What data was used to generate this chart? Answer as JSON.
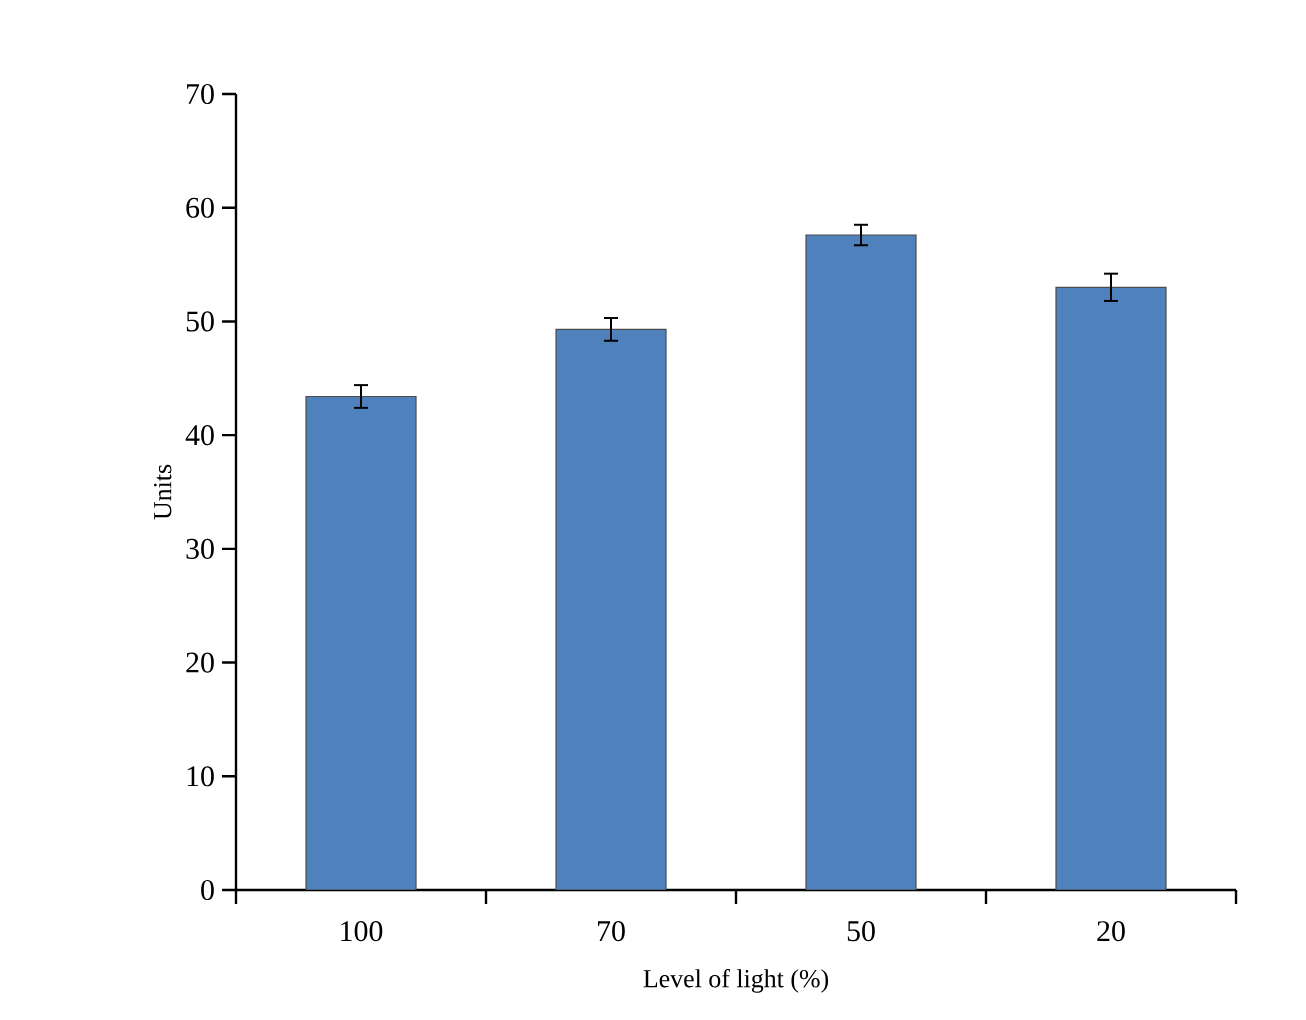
{
  "chart_data": {
    "type": "bar",
    "xlabel": "Level of light (%)",
    "ylabel": "Units",
    "categories": [
      "100",
      "70",
      "50",
      "20"
    ],
    "values": [
      43.4,
      49.3,
      57.6,
      53.0
    ],
    "errors": [
      1.0,
      1.0,
      0.9,
      1.2
    ],
    "color": "#4f81bd",
    "ylim": [
      0,
      70
    ],
    "yticks": [
      0,
      10,
      20,
      30,
      40,
      50,
      60,
      70
    ],
    "grid": false
  }
}
